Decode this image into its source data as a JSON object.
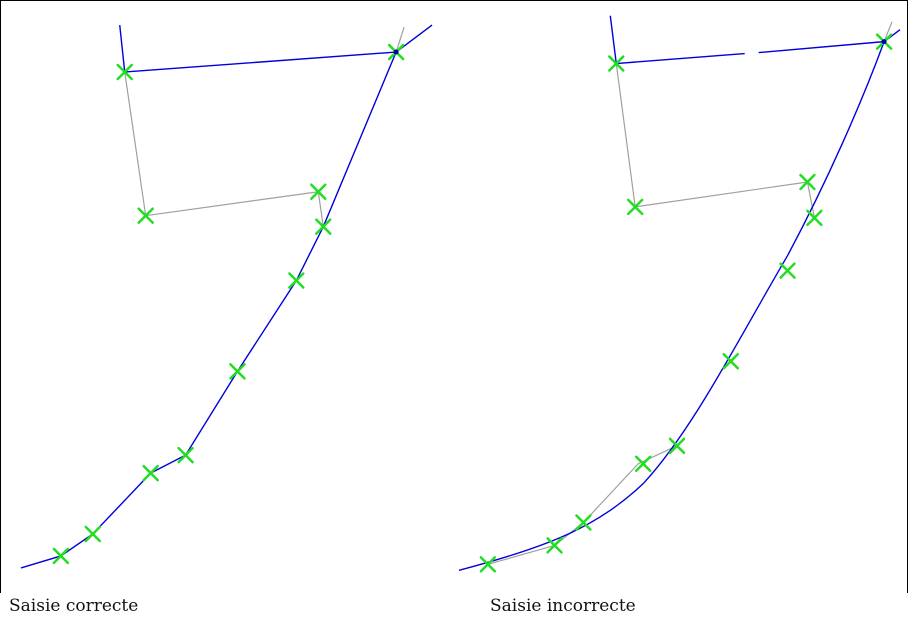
{
  "captions": {
    "left": "Saisie correcte",
    "right": "Saisie incorrecte"
  },
  "colors": {
    "digitized_line": "#0000dd",
    "reference_line": "#a0a0a0",
    "vertex_marker": "#22dd22",
    "background": "#ffffff",
    "frame": "#000000"
  },
  "legend_semantics": {
    "marker": "x-cross-icon",
    "vertex_dot": "dot-icon"
  }
}
